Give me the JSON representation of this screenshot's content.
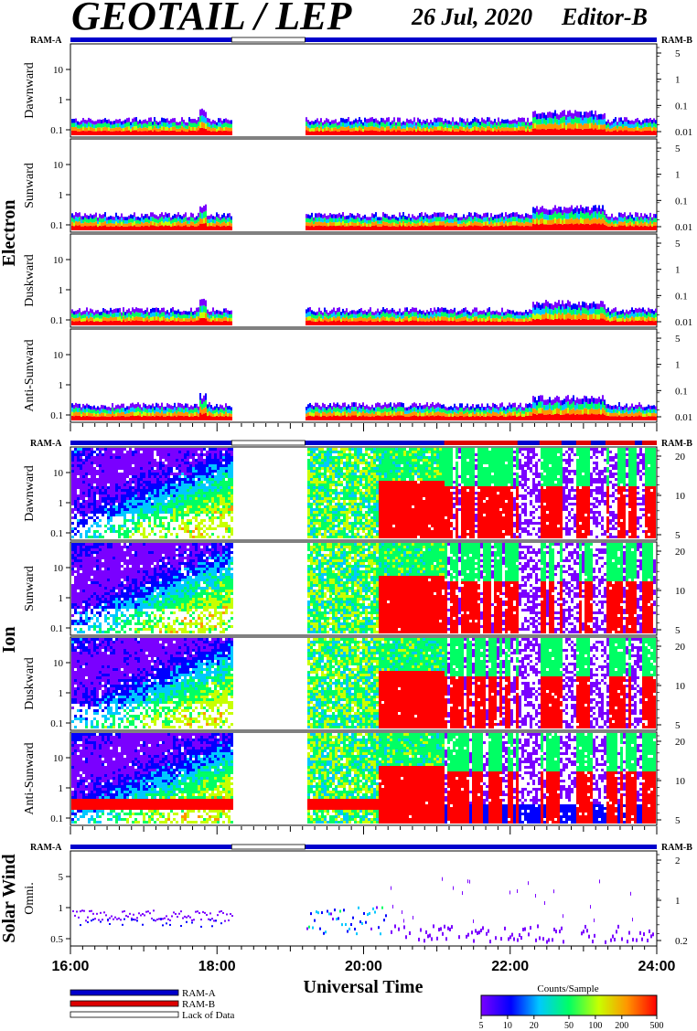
{
  "header": {
    "title": "GEOTAIL / LEP",
    "date": "26 Jul, 2020",
    "editor": "Editor-B"
  },
  "colors": {
    "ram_a": "#0000cc",
    "ram_b": "#dd0000",
    "lack": "#ffffff",
    "colorbar_stops": [
      "#7a00ff",
      "#0000ff",
      "#00c8ff",
      "#00ff64",
      "#c8ff00",
      "#ff9600",
      "#ff0000"
    ]
  },
  "chart_data": {
    "type": "heatmap",
    "xlabel": "Universal Time",
    "x_ticks": [
      "16:00",
      "18:00",
      "20:00",
      "22:00",
      "24:00"
    ],
    "x_range_hours": [
      16,
      24
    ],
    "data_gap_hours": [
      18.2,
      19.2
    ],
    "ram_labels": {
      "left": "RAM-A",
      "right": "RAM-B"
    },
    "groups": [
      {
        "name": "Electron",
        "left_ticks": [
          "10",
          "1",
          "0.1"
        ],
        "right_ticks": [
          "5",
          "1",
          "0.1",
          "0.01"
        ],
        "panels": [
          "Dawnward",
          "Sunward",
          "Duskward",
          "Anti-Sunward"
        ]
      },
      {
        "name": "Ion",
        "left_ticks": [
          "10",
          "1",
          "0.1"
        ],
        "right_ticks": [
          "20",
          "10",
          "5"
        ],
        "panels": [
          "Dawnward",
          "Sunward",
          "Duskward",
          "Anti-Sunward"
        ]
      },
      {
        "name": "Solar Wind",
        "left_ticks": [
          "5",
          "1",
          "0.5"
        ],
        "right_ticks": [
          "2",
          "1",
          "0.2"
        ],
        "panels": [
          "Omni."
        ]
      }
    ],
    "ram_b_intervals_ion_hours": [
      [
        21.1,
        22.1
      ],
      [
        22.4,
        22.7
      ],
      [
        22.9,
        23.1
      ],
      [
        23.3,
        23.7
      ],
      [
        23.8,
        24.0
      ]
    ],
    "legend": [
      "RAM-A",
      "RAM-B",
      "Lack of Data"
    ],
    "colorbar": {
      "title": "Counts/Sample",
      "scale": "log",
      "range": [
        5,
        500
      ],
      "ticks": [
        "5",
        "10",
        "20",
        "50",
        "100",
        "200",
        "500"
      ]
    }
  }
}
